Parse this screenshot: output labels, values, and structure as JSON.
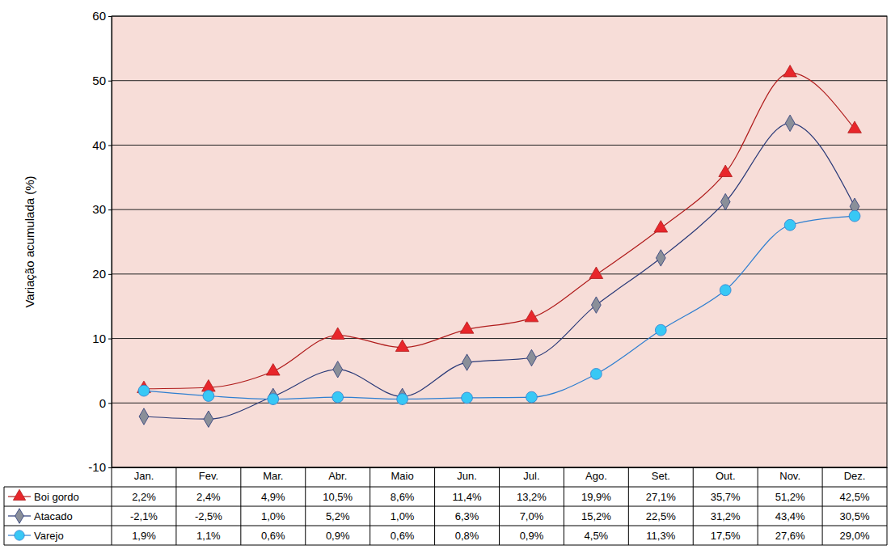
{
  "chart_data": {
    "type": "line",
    "y_label": "Variação acumulada (%)",
    "categories": [
      "Jan.",
      "Fev.",
      "Mar.",
      "Abr.",
      "Maio",
      "Jun.",
      "Jul.",
      "Ago.",
      "Set.",
      "Out.",
      "Nov.",
      "Dez."
    ],
    "ylim": [
      -10,
      60
    ],
    "yticks": [
      -10,
      0,
      10,
      20,
      30,
      40,
      50,
      60
    ],
    "grid": true,
    "data_labels": true,
    "series": [
      {
        "name": "Boi gordo",
        "color": "#b01c1c",
        "marker": "triangle",
        "values": [
          2.2,
          2.4,
          4.9,
          10.5,
          8.6,
          11.4,
          13.2,
          19.9,
          27.1,
          35.7,
          51.2,
          42.5
        ],
        "value_labels": [
          "2,2%",
          "2,4%",
          "4,9%",
          "10,5%",
          "8,6%",
          "11,4%",
          "13,2%",
          "19,9%",
          "27,1%",
          "35,7%",
          "51,2%",
          "42,5%"
        ]
      },
      {
        "name": "Atacado",
        "color": "#2a3a78",
        "marker": "diamond",
        "values": [
          -2.1,
          -2.5,
          1.0,
          5.2,
          1.0,
          6.3,
          7.0,
          15.2,
          22.5,
          31.2,
          43.4,
          30.5
        ],
        "value_labels": [
          "-2,1%",
          "-2,5%",
          "1,0%",
          "5,2%",
          "1,0%",
          "6,3%",
          "7,0%",
          "15,2%",
          "22,5%",
          "31,2%",
          "43,4%",
          "30,5%"
        ]
      },
      {
        "name": "Varejo",
        "color": "#2f7fd0",
        "marker": "circle",
        "values": [
          1.9,
          1.1,
          0.6,
          0.9,
          0.6,
          0.8,
          0.9,
          4.5,
          11.3,
          17.5,
          27.6,
          29.0
        ],
        "value_labels": [
          "1,9%",
          "1,1%",
          "0,6%",
          "0,9%",
          "0,6%",
          "0,8%",
          "0,9%",
          "4,5%",
          "11,3%",
          "17,5%",
          "27,6%",
          "29,0%"
        ]
      }
    ]
  }
}
